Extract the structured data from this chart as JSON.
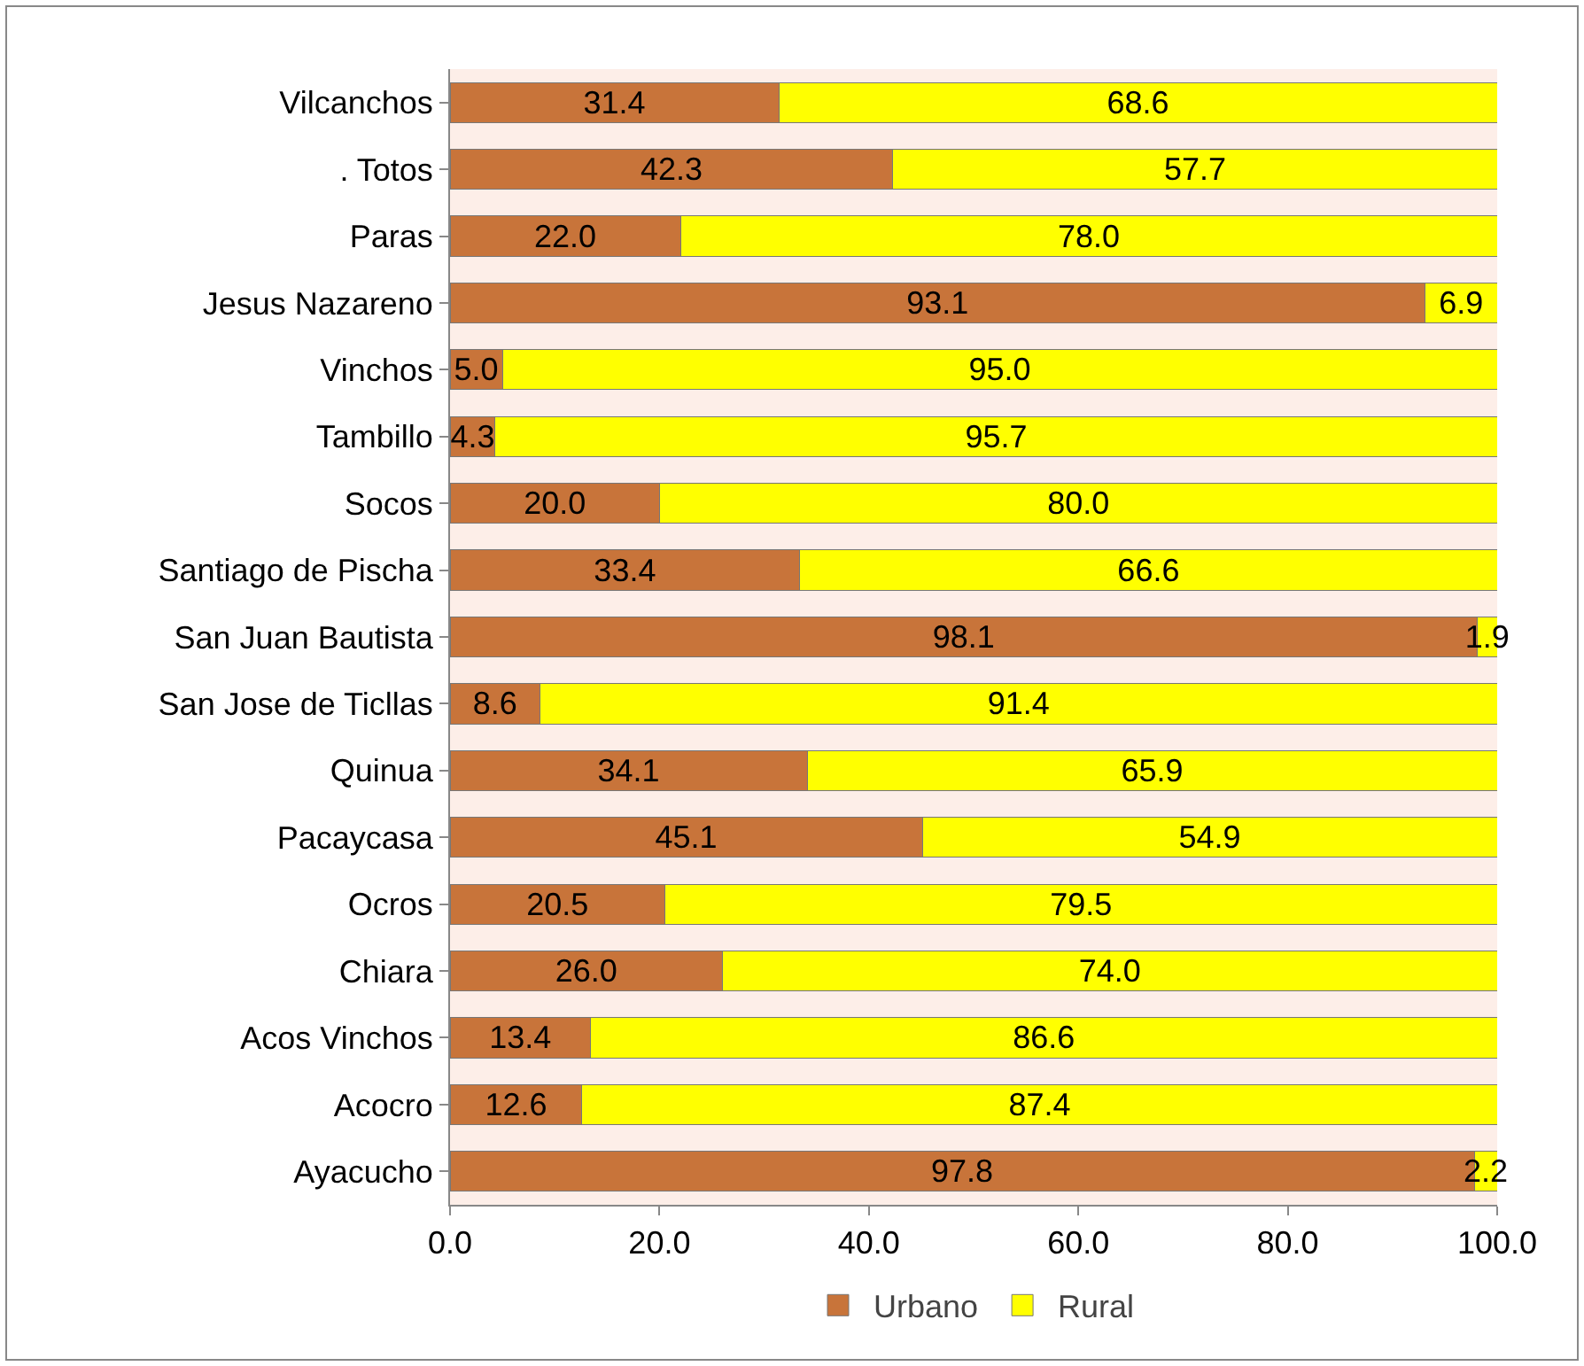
{
  "chart_data": {
    "type": "bar",
    "orientation": "horizontal",
    "stacked": true,
    "categories": [
      "Vilcanchos",
      ". Totos",
      "Paras",
      "Jesus Nazareno",
      "Vinchos",
      "Tambillo",
      "Socos",
      "Santiago de Pischa",
      "San Juan Bautista",
      "San Jose de Ticllas",
      "Quinua",
      "Pacaycasa",
      "Ocros",
      "Chiara",
      "Acos Vinchos",
      "Acocro",
      "Ayacucho"
    ],
    "series": [
      {
        "name": "Urbano",
        "color": "#c8743a",
        "values": [
          31.4,
          42.3,
          22.0,
          93.1,
          5.0,
          4.3,
          20.0,
          33.4,
          98.1,
          8.6,
          34.1,
          45.1,
          20.5,
          26.0,
          13.4,
          12.6,
          97.8
        ],
        "value_labels": [
          "31.4",
          "42.3",
          "22.0",
          "93.1",
          "5.0",
          "4.3",
          "20.0",
          "33.4",
          "98.1",
          "8.6",
          "34.1",
          "45.1",
          "20.5",
          "26.0",
          "13.4",
          "12.6",
          "97.8"
        ]
      },
      {
        "name": "Rural",
        "color": "#ffff00",
        "values": [
          68.6,
          57.7,
          78.0,
          6.9,
          95.0,
          95.7,
          80.0,
          66.6,
          1.9,
          91.4,
          65.9,
          54.9,
          79.5,
          74.0,
          86.6,
          87.4,
          2.2
        ],
        "value_labels": [
          "68.6",
          "57.7",
          "78.0",
          "6.9",
          "95.0",
          "95.7",
          "80.0",
          "66.6",
          "1.9",
          "91.4",
          "65.9",
          "54.9",
          "79.5",
          "74.0",
          "86.6",
          "87.4",
          "2.2"
        ]
      }
    ],
    "xlim": [
      0,
      100
    ],
    "xticks": [
      {
        "value": 0,
        "label": "0.0"
      },
      {
        "value": 20,
        "label": "20.0"
      },
      {
        "value": 40,
        "label": "40.0"
      },
      {
        "value": 60,
        "label": "60.0"
      },
      {
        "value": 80,
        "label": "80.0"
      },
      {
        "value": 100,
        "label": "100.0"
      }
    ],
    "legend": "bottom"
  }
}
